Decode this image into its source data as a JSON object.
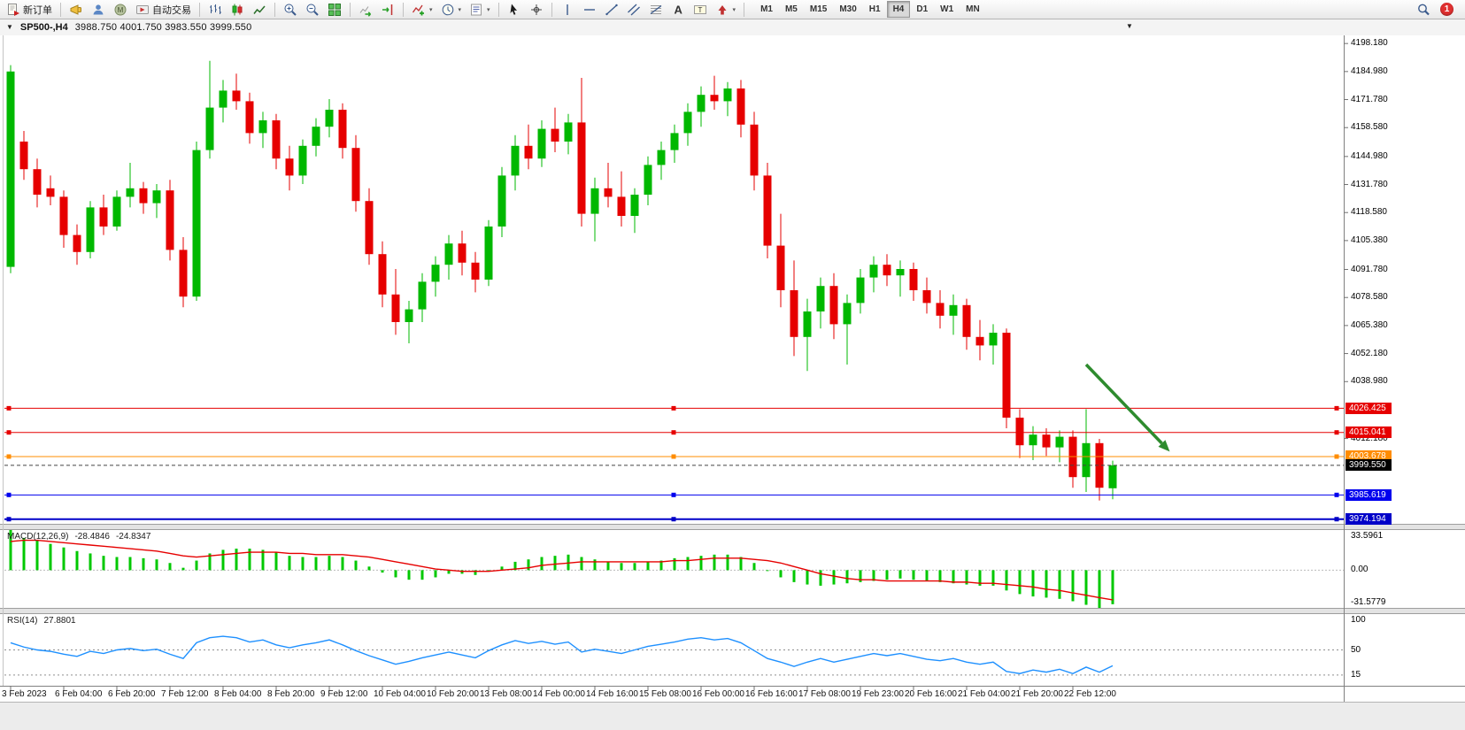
{
  "toolbar": {
    "items": [
      {
        "name": "new-order-button",
        "type": "button",
        "icon": "new-order-icon",
        "label": "新订单"
      },
      {
        "type": "sep"
      },
      {
        "name": "megaphone-button",
        "type": "icon",
        "icon": "megaphone-icon"
      },
      {
        "name": "profiles-button",
        "type": "icon",
        "icon": "profiles-icon"
      },
      {
        "name": "mql-community-button",
        "type": "icon",
        "icon": "mql-icon"
      },
      {
        "name": "auto-trading-button",
        "type": "button",
        "icon": "auto-trading-icon",
        "label": "自动交易"
      },
      {
        "type": "sep"
      },
      {
        "name": "bar-chart-button",
        "type": "icon",
        "icon": "bar-chart-icon"
      },
      {
        "name": "candlestick-chart-button",
        "type": "icon",
        "icon": "candlestick-icon"
      },
      {
        "name": "line-chart-button",
        "type": "icon",
        "icon": "line-chart-icon"
      },
      {
        "type": "sep"
      },
      {
        "name": "zoom-in-button",
        "type": "icon",
        "icon": "zoom-in-icon"
      },
      {
        "name": "zoom-out-button",
        "type": "icon",
        "icon": "zoom-out-icon"
      },
      {
        "name": "tile-windows-button",
        "type": "icon",
        "icon": "tile-windows-icon"
      },
      {
        "type": "sep"
      },
      {
        "name": "auto-scroll-button",
        "type": "icon",
        "icon": "auto-scroll-icon"
      },
      {
        "name": "chart-shift-button",
        "type": "icon",
        "icon": "chart-shift-icon"
      },
      {
        "type": "sep"
      },
      {
        "name": "indicators-button",
        "type": "icon",
        "icon": "indicators-icon",
        "dropdown": true
      },
      {
        "name": "periods-button",
        "type": "icon",
        "icon": "clock-icon",
        "dropdown": true
      },
      {
        "name": "templates-button",
        "type": "icon",
        "icon": "templates-icon",
        "dropdown": true
      },
      {
        "type": "sep"
      },
      {
        "name": "cursor-button",
        "type": "icon",
        "icon": "cursor-icon"
      },
      {
        "name": "crosshair-button",
        "type": "icon",
        "icon": "crosshair-icon"
      },
      {
        "type": "sep"
      },
      {
        "name": "vertical-line-button",
        "type": "icon",
        "icon": "vertical-line-icon"
      },
      {
        "name": "horizontal-line-button",
        "type": "icon",
        "icon": "horizontal-line-icon"
      },
      {
        "name": "trendline-button",
        "type": "icon",
        "icon": "trendline-icon"
      },
      {
        "name": "channel-button",
        "type": "icon",
        "icon": "channel-icon"
      },
      {
        "name": "fibonacci-button",
        "type": "icon",
        "icon": "fibonacci-icon"
      },
      {
        "name": "text-button",
        "type": "icon",
        "icon": "text-icon"
      },
      {
        "name": "text-label-button",
        "type": "icon",
        "icon": "label-icon"
      },
      {
        "name": "arrows-button",
        "type": "icon",
        "icon": "arrows-icon",
        "dropdown": true
      },
      {
        "type": "sep"
      },
      {
        "type": "timeframes"
      }
    ],
    "timeframes": [
      "M1",
      "M5",
      "M15",
      "M30",
      "H1",
      "H4",
      "D1",
      "W1",
      "MN"
    ],
    "active_timeframe": "H4",
    "notification_count": "1"
  },
  "chart_header": {
    "symbol": "SP500-,H4",
    "ohlc": "3988.750 4001.750 3983.550 3999.550",
    "one_click_arrow": "▼",
    "dropdown_arrow": "▼"
  },
  "chart_data": {
    "type": "candlestick",
    "symbol": "SP500-",
    "timeframe": "H4",
    "current_ohlc": {
      "open": 3988.75,
      "high": 4001.75,
      "low": 3983.55,
      "close": 3999.55
    },
    "y_range": [
      3972,
      4202
    ],
    "y_ticks": [
      "4198.180",
      "4184.980",
      "4171.780",
      "4158.580",
      "4144.980",
      "4131.780",
      "4118.580",
      "4105.380",
      "4091.780",
      "4078.580",
      "4065.380",
      "4052.180",
      "4038.980",
      "4012.180"
    ],
    "price_lines": [
      {
        "label": "4026.425",
        "value": 4026.425,
        "color": "#e60000",
        "width": 1
      },
      {
        "label": "4015.041",
        "value": 4015.041,
        "color": "#e60000",
        "width": 1
      },
      {
        "label": "4003.678",
        "value": 4003.678,
        "color": "#ff8c00",
        "width": 1
      },
      {
        "label": "3985.619",
        "value": 3985.619,
        "color": "#0000ee",
        "width": 1
      },
      {
        "label": "3974.194",
        "value": 3974.194,
        "color": "#0000c8",
        "width": 2
      }
    ],
    "current_price": {
      "label": "3999.550",
      "value": 3999.55,
      "color": "#000000"
    },
    "colors": {
      "up": "#00b800",
      "down": "#e60000",
      "background": "#ffffff"
    },
    "candles": [
      [
        4093,
        4188,
        4090,
        4185
      ],
      [
        4152,
        4157,
        4134,
        4139
      ],
      [
        4139,
        4144,
        4121,
        4127
      ],
      [
        4130,
        4136,
        4122,
        4126
      ],
      [
        4126,
        4129,
        4102,
        4108
      ],
      [
        4108,
        4113,
        4094,
        4100
      ],
      [
        4100,
        4124,
        4097,
        4121
      ],
      [
        4121,
        4127,
        4108,
        4112
      ],
      [
        4112,
        4129,
        4110,
        4126
      ],
      [
        4126,
        4142,
        4121,
        4130
      ],
      [
        4130,
        4133,
        4118,
        4123
      ],
      [
        4123,
        4132,
        4116,
        4129
      ],
      [
        4129,
        4134,
        4096,
        4101
      ],
      [
        4101,
        4107,
        4074,
        4079
      ],
      [
        4079,
        4152,
        4077,
        4148
      ],
      [
        4148,
        4190,
        4144,
        4168
      ],
      [
        4168,
        4181,
        4161,
        4176
      ],
      [
        4176,
        4184,
        4167,
        4171
      ],
      [
        4171,
        4175,
        4151,
        4156
      ],
      [
        4156,
        4166,
        4149,
        4162
      ],
      [
        4162,
        4165,
        4139,
        4144
      ],
      [
        4144,
        4150,
        4129,
        4136
      ],
      [
        4136,
        4153,
        4132,
        4150
      ],
      [
        4150,
        4163,
        4145,
        4159
      ],
      [
        4159,
        4172,
        4154,
        4167
      ],
      [
        4167,
        4170,
        4144,
        4149
      ],
      [
        4149,
        4155,
        4119,
        4124
      ],
      [
        4124,
        4130,
        4094,
        4099
      ],
      [
        4099,
        4105,
        4074,
        4080
      ],
      [
        4080,
        4092,
        4061,
        4067
      ],
      [
        4067,
        4077,
        4057,
        4073
      ],
      [
        4073,
        4090,
        4067,
        4086
      ],
      [
        4086,
        4098,
        4079,
        4094
      ],
      [
        4094,
        4108,
        4087,
        4104
      ],
      [
        4104,
        4110,
        4089,
        4095
      ],
      [
        4095,
        4100,
        4081,
        4087
      ],
      [
        4087,
        4115,
        4084,
        4112
      ],
      [
        4112,
        4140,
        4107,
        4136
      ],
      [
        4136,
        4155,
        4129,
        4150
      ],
      [
        4150,
        4160,
        4139,
        4144
      ],
      [
        4144,
        4162,
        4140,
        4158
      ],
      [
        4158,
        4168,
        4147,
        4152
      ],
      [
        4152,
        4165,
        4146,
        4161
      ],
      [
        4161,
        4182,
        4112,
        4118
      ],
      [
        4118,
        4135,
        4105,
        4130
      ],
      [
        4130,
        4142,
        4121,
        4126
      ],
      [
        4126,
        4138,
        4112,
        4117
      ],
      [
        4117,
        4130,
        4109,
        4127
      ],
      [
        4127,
        4145,
        4122,
        4141
      ],
      [
        4141,
        4152,
        4134,
        4148
      ],
      [
        4148,
        4160,
        4142,
        4156
      ],
      [
        4156,
        4170,
        4150,
        4166
      ],
      [
        4166,
        4178,
        4159,
        4174
      ],
      [
        4174,
        4183,
        4167,
        4171
      ],
      [
        4171,
        4180,
        4164,
        4177
      ],
      [
        4177,
        4181,
        4154,
        4160
      ],
      [
        4160,
        4166,
        4129,
        4136
      ],
      [
        4136,
        4142,
        4097,
        4103
      ],
      [
        4103,
        4118,
        4074,
        4082
      ],
      [
        4082,
        4096,
        4051,
        4060
      ],
      [
        4060,
        4078,
        4044,
        4072
      ],
      [
        4072,
        4088,
        4064,
        4084
      ],
      [
        4084,
        4090,
        4059,
        4066
      ],
      [
        4066,
        4080,
        4047,
        4076
      ],
      [
        4076,
        4092,
        4071,
        4088
      ],
      [
        4088,
        4098,
        4081,
        4094
      ],
      [
        4094,
        4099,
        4084,
        4089
      ],
      [
        4089,
        4096,
        4079,
        4092
      ],
      [
        4092,
        4095,
        4077,
        4082
      ],
      [
        4082,
        4088,
        4071,
        4076
      ],
      [
        4076,
        4082,
        4064,
        4070
      ],
      [
        4070,
        4080,
        4061,
        4075
      ],
      [
        4075,
        4078,
        4054,
        4060
      ],
      [
        4060,
        4068,
        4049,
        4056
      ],
      [
        4056,
        4066,
        4047,
        4062
      ],
      [
        4062,
        4064,
        4017,
        4022
      ],
      [
        4022,
        4026,
        4003,
        4009
      ],
      [
        4009,
        4018,
        4002,
        4014
      ],
      [
        4014,
        4017,
        4004,
        4008
      ],
      [
        4008,
        4016,
        4001,
        4013
      ],
      [
        4013,
        4016,
        3989,
        3994
      ],
      [
        3994,
        4026,
        3987,
        4010
      ],
      [
        4010,
        4012,
        3983,
        3989
      ],
      [
        3988.75,
        4001.75,
        3983.55,
        3999.55
      ]
    ],
    "x_labels": [
      {
        "text": "3 Feb 2023",
        "i": 0
      },
      {
        "text": "6 Feb 04:00",
        "i": 4
      },
      {
        "text": "6 Feb 20:00",
        "i": 8
      },
      {
        "text": "7 Feb 12:00",
        "i": 12
      },
      {
        "text": "8 Feb 04:00",
        "i": 16
      },
      {
        "text": "8 Feb 20:00",
        "i": 20
      },
      {
        "text": "9 Feb 12:00",
        "i": 24
      },
      {
        "text": "10 Feb 04:00",
        "i": 28
      },
      {
        "text": "10 Feb 20:00",
        "i": 32
      },
      {
        "text": "13 Feb 08:00",
        "i": 36
      },
      {
        "text": "14 Feb 00:00",
        "i": 40
      },
      {
        "text": "14 Feb 16:00",
        "i": 44
      },
      {
        "text": "15 Feb 08:00",
        "i": 48
      },
      {
        "text": "16 Feb 00:00",
        "i": 52
      },
      {
        "text": "16 Feb 16:00",
        "i": 56
      },
      {
        "text": "17 Feb 08:00",
        "i": 60
      },
      {
        "text": "19 Feb 23:00",
        "i": 64
      },
      {
        "text": "20 Feb 16:00",
        "i": 68
      },
      {
        "text": "21 Feb 04:00",
        "i": 72
      },
      {
        "text": "21 Feb 20:00",
        "i": 76
      },
      {
        "text": "22 Feb 12:00",
        "i": 80
      }
    ],
    "macd": {
      "title": "MACD(12,26,9)",
      "value_main": "-28.4846",
      "value_signal": "-24.8347",
      "range": [
        -31.5779,
        33.5961
      ],
      "scale_labels": [
        "33.5961",
        "0.00",
        "-31.5779"
      ],
      "histogram_color": "#00c800",
      "signal_color": "#e60000",
      "histogram": [
        33.5961,
        27,
        25,
        22,
        19,
        16,
        14,
        12,
        11,
        11,
        10,
        9,
        6,
        2,
        8,
        14,
        17,
        18,
        18,
        17,
        15,
        12,
        11,
        11,
        12,
        11,
        8,
        3,
        -2,
        -6,
        -8,
        -8,
        -6,
        -3,
        -3,
        -4,
        -1,
        3,
        7,
        9,
        11,
        12,
        13,
        11,
        9,
        7,
        6,
        6,
        7,
        8,
        10,
        11,
        12,
        13,
        13,
        11,
        6,
        0,
        -6,
        -10,
        -12,
        -13,
        -12,
        -11,
        -10,
        -9,
        -8,
        -7,
        -8,
        -9,
        -10,
        -11,
        -12,
        -13,
        -13,
        -17,
        -20,
        -22,
        -23,
        -24,
        -26,
        -29,
        -31.5779,
        -28.4846
      ],
      "signal": [
        24,
        25,
        25,
        24,
        23,
        22,
        21,
        20,
        19,
        18,
        17,
        16,
        14,
        12,
        11,
        12,
        13,
        14,
        15,
        15,
        15,
        14,
        14,
        13,
        13,
        13,
        12,
        11,
        9,
        7,
        5,
        3,
        1,
        0,
        -1,
        -1,
        -1,
        0,
        1,
        2,
        4,
        5,
        6,
        7,
        7,
        7,
        7,
        7,
        7,
        7,
        8,
        8,
        9,
        10,
        10,
        10,
        9,
        8,
        6,
        3,
        0,
        -3,
        -5,
        -7,
        -8,
        -8,
        -9,
        -9,
        -9,
        -9,
        -9,
        -10,
        -10,
        -11,
        -11,
        -12,
        -13,
        -14,
        -16,
        -17,
        -19,
        -21,
        -23,
        -24.8347
      ]
    },
    "rsi": {
      "title": "RSI(14)",
      "value": "27.8801",
      "range": [
        0,
        100
      ],
      "levels": [
        50,
        15
      ],
      "scale_labels": [
        "100",
        "50",
        "15"
      ],
      "color": "#1e90ff",
      "series": [
        60,
        54,
        50,
        48,
        44,
        41,
        48,
        45,
        50,
        52,
        49,
        51,
        44,
        38,
        60,
        67,
        69,
        67,
        61,
        64,
        57,
        53,
        57,
        60,
        64,
        57,
        49,
        42,
        36,
        30,
        34,
        39,
        43,
        47,
        43,
        39,
        49,
        57,
        63,
        59,
        62,
        58,
        61,
        47,
        51,
        48,
        45,
        50,
        55,
        58,
        61,
        65,
        67,
        64,
        66,
        60,
        49,
        38,
        33,
        27,
        33,
        38,
        33,
        37,
        41,
        45,
        42,
        45,
        41,
        37,
        35,
        38,
        33,
        30,
        33,
        20,
        17,
        22,
        19,
        23,
        17,
        26,
        19,
        27.8801
      ]
    },
    "trend_arrow": {
      "from_candle": 81,
      "from_price": 4047,
      "to_candle": 87.3,
      "to_price": 4006,
      "color": "#2e8b2e"
    }
  }
}
